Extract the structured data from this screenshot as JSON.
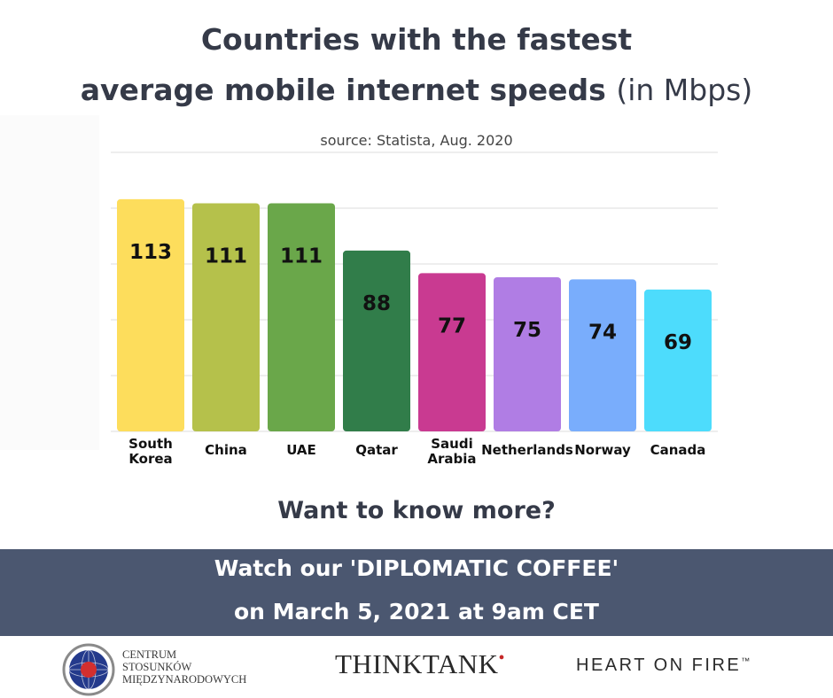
{
  "header": {
    "title_line1": "Countries with the fastest",
    "title_line2": "average mobile internet speeds",
    "title_unit": "(in Mbps)",
    "source": "source: Statista, Aug. 2020"
  },
  "chart_data": {
    "type": "bar",
    "categories": [
      [
        "South",
        "Korea"
      ],
      [
        "China"
      ],
      [
        "UAE"
      ],
      [
        "Qatar"
      ],
      [
        "Saudi",
        "Arabia"
      ],
      [
        "Netherlands"
      ],
      [
        "Norway"
      ],
      [
        "Canada"
      ]
    ],
    "values": [
      113,
      111,
      111,
      88,
      77,
      75,
      74,
      69
    ],
    "colors": [
      "#fddd5c",
      "#b5c14b",
      "#6aa74a",
      "#317d4a",
      "#c93a91",
      "#b07de4",
      "#79adfc",
      "#4ddcfc"
    ],
    "ylim": [
      0,
      125
    ],
    "grid": true,
    "show_axis_ticks": false,
    "data_labels": true
  },
  "cta": "Want to know more?",
  "banner": {
    "line1": "Watch our 'DIPLOMATIC COFFEE'",
    "line2": "on March 5, 2021 at 9am CET",
    "color": "#4b5770"
  },
  "footer": {
    "centrum": [
      "CENTRUM",
      "STOSUNKÓW",
      "MIĘDZYNARODOWYCH"
    ],
    "think_main": "THINK",
    "think_tail": "TANK",
    "heart": "HEART ON FIRE",
    "heart_tm": "™"
  }
}
